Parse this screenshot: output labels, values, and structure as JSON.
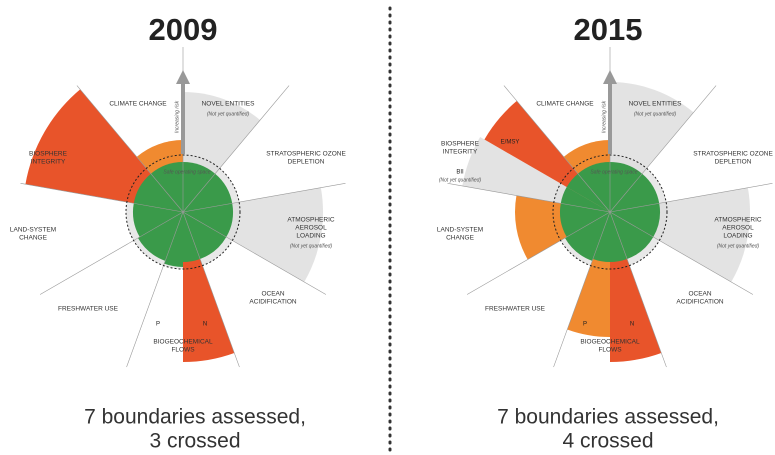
{
  "panels": [
    {
      "year": "2009",
      "increasing_risk": "Increasing risk",
      "safe_space": "Safe operating space",
      "labels": {
        "climate": "CLIMATE CHANGE",
        "novel": "NOVEL ENTITIES",
        "novel_note": "(Not yet quantified)",
        "ozone1": "STRATOSPHERIC OZONE",
        "ozone2": "DEPLETION",
        "aerosol1": "ATMOSPHERIC",
        "aerosol2": "AEROSOL",
        "aerosol3": "LOADING",
        "aerosol_note": "(Not yet quantified)",
        "ocean1": "OCEAN",
        "ocean2": "ACIDIFICATION",
        "bio1": "BIOGEOCHEMICAL",
        "bio2": "FLOWS",
        "p": "P",
        "n": "N",
        "fresh": "FRESHWATER USE",
        "land1": "LAND-SYSTEM",
        "land2": "CHANGE",
        "biosphere1": "BIOSPHERE",
        "biosphere2": "INTEGRITY"
      },
      "caption": [
        "7 boundaries assessed,",
        "3 crossed"
      ]
    },
    {
      "year": "2015",
      "increasing_risk": "Increasing risk",
      "safe_space": "Safe operating space",
      "labels": {
        "climate": "CLIMATE CHANGE",
        "novel": "NOVEL ENTITIES",
        "novel_note": "(Not yet quantified)",
        "ozone1": "STRATOSPHERIC OZONE",
        "ozone2": "DEPLETION",
        "aerosol1": "ATMOSPHERIC",
        "aerosol2": "AEROSOL",
        "aerosol3": "LOADING",
        "aerosol_note": "(Not yet quantified)",
        "ocean1": "OCEAN",
        "ocean2": "ACIDIFICATION",
        "bio1": "BIOGEOCHEMICAL",
        "bio2": "FLOWS",
        "p": "P",
        "n": "N",
        "fresh": "FRESHWATER USE",
        "land1": "LAND-SYSTEM",
        "land2": "CHANGE",
        "biosphere1": "BIOSPHERE",
        "biosphere2": "INTEGRITY",
        "emsy": "E/MSY",
        "bii": "BII",
        "bii_note": "(Not yet quantified)"
      },
      "caption": [
        "7 boundaries assessed,",
        "4 crossed"
      ]
    }
  ]
}
